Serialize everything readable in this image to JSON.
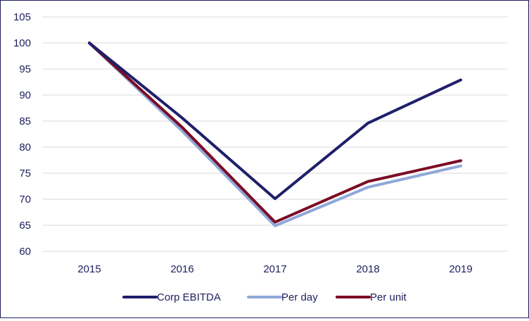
{
  "chart_data": {
    "type": "line",
    "title": "",
    "xlabel": "",
    "ylabel": "",
    "categories": [
      "2015",
      "2016",
      "2017",
      "2018",
      "2019"
    ],
    "ylim": [
      60,
      105
    ],
    "yticks": [
      60,
      65,
      70,
      75,
      80,
      85,
      90,
      95,
      100,
      105
    ],
    "grid": true,
    "legend_position": "bottom",
    "series": [
      {
        "name": "Corp EBITDA",
        "color": "#1f1f6b",
        "values": [
          100,
          85.6,
          70.1,
          84.6,
          92.9
        ]
      },
      {
        "name": "Per day",
        "color": "#8fa8d8",
        "values": [
          100,
          83.1,
          64.9,
          72.3,
          76.4
        ]
      },
      {
        "name": "Per unit",
        "color": "#7b0c24",
        "values": [
          100,
          83.8,
          65.6,
          73.4,
          77.4
        ]
      }
    ]
  }
}
